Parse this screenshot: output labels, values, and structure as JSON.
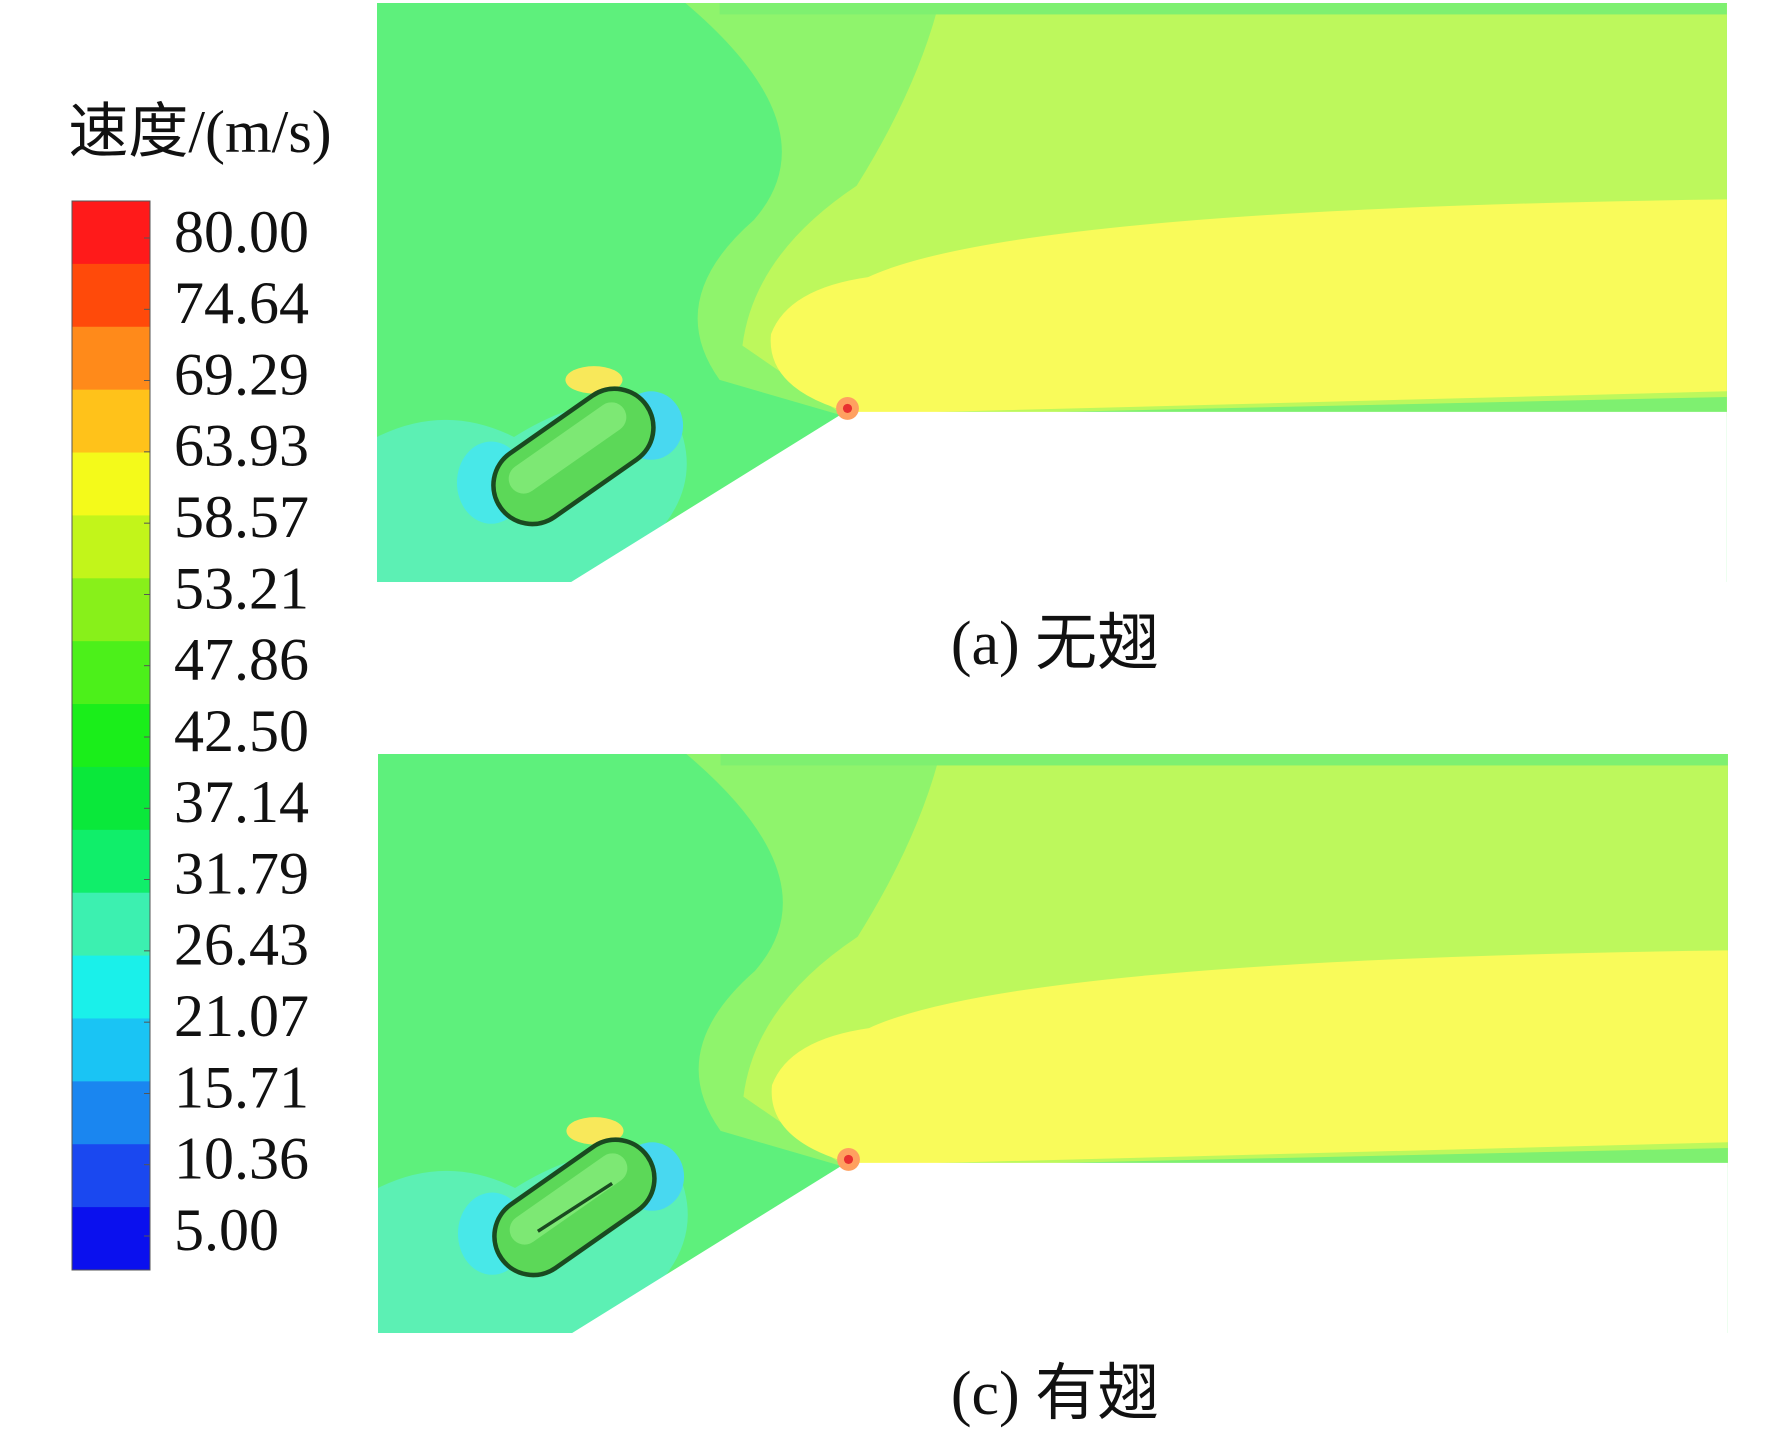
{
  "chart_data": {
    "type": "contour",
    "colorbar_title": "速度/(m/s)",
    "colorbar_lim": [
      5,
      80
    ],
    "colorbar_ticks": [
      {
        "value": 80,
        "label": "80.00"
      },
      {
        "value": 74.64,
        "label": "74.64"
      },
      {
        "value": 69.29,
        "label": "69.29"
      },
      {
        "value": 63.93,
        "label": "63.93"
      },
      {
        "value": 58.57,
        "label": "58.57"
      },
      {
        "value": 53.21,
        "label": "53.21"
      },
      {
        "value": 47.86,
        "label": "47.86"
      },
      {
        "value": 42.5,
        "label": "42.50"
      },
      {
        "value": 37.14,
        "label": "37.14"
      },
      {
        "value": 31.79,
        "label": "31.79"
      },
      {
        "value": 26.43,
        "label": "26.43"
      },
      {
        "value": 21.07,
        "label": "21.07"
      },
      {
        "value": 15.71,
        "label": "15.71"
      },
      {
        "value": 10.36,
        "label": "10.36"
      },
      {
        "value": 5,
        "label": "5.00"
      }
    ],
    "colors": [
      "#ff1a1a",
      "#ff4a0a",
      "#ff8a1a",
      "#ffc21a",
      "#f4fa1a",
      "#c2f51a",
      "#88f01a",
      "#4cf01a",
      "#1aee1a",
      "#0ae83a",
      "#10ee6a",
      "#3cf0b0",
      "#1af0ea",
      "#1ac4f4",
      "#1a86f0",
      "#1a48f0",
      "#0a10ee"
    ],
    "panels": [
      {
        "caption": "(a) 无翅"
      },
      {
        "caption": "(c) 有翅"
      }
    ]
  }
}
